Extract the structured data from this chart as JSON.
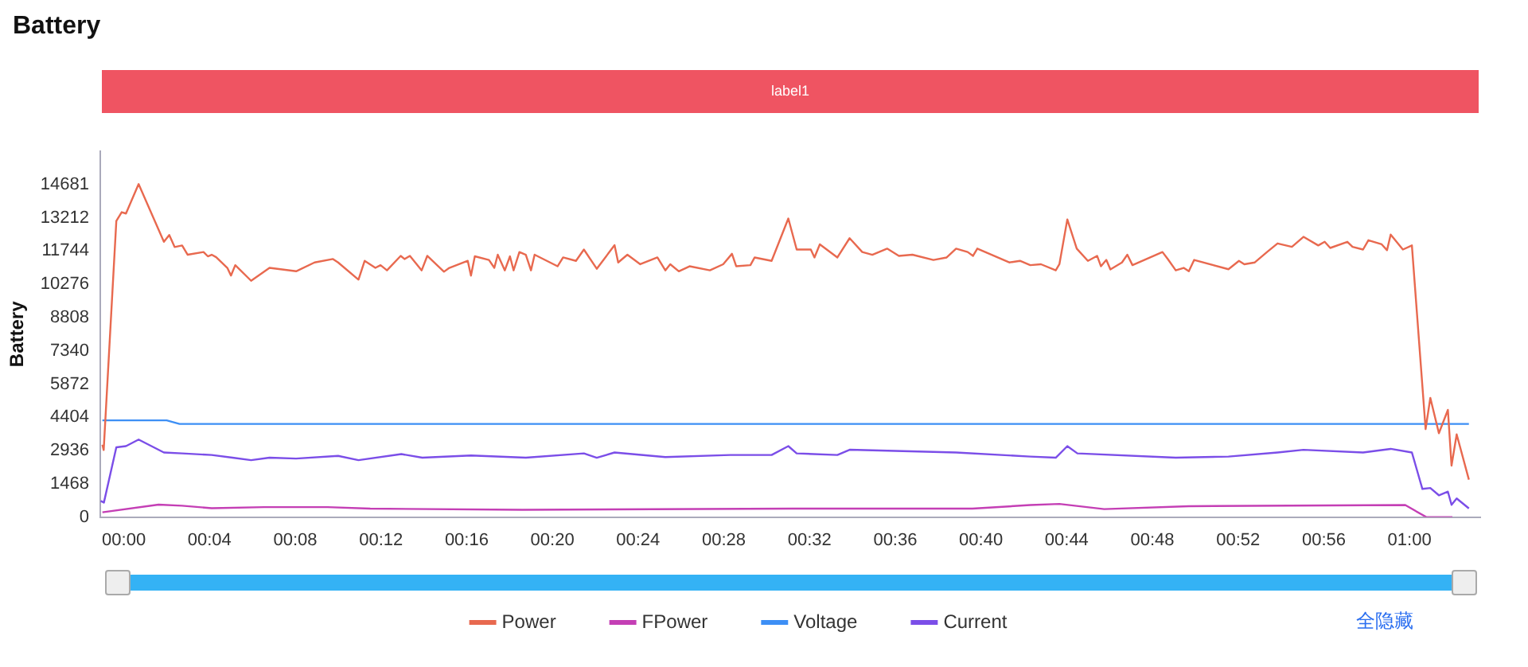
{
  "chart_data": {
    "type": "line",
    "title": "Battery",
    "ylabel": "Battery",
    "legend": "bottom",
    "grid": false,
    "marker": "none",
    "line_style": "solid",
    "annotations": [
      "label1",
      "全隐藏"
    ],
    "xlim": [
      -1.1,
      63.3
    ],
    "xticks": [
      {
        "value": 0,
        "label": "00:00"
      },
      {
        "value": 4,
        "label": "00:04"
      },
      {
        "value": 8,
        "label": "00:08"
      },
      {
        "value": 12,
        "label": "00:12"
      },
      {
        "value": 16,
        "label": "00:16"
      },
      {
        "value": 20,
        "label": "00:20"
      },
      {
        "value": 24,
        "label": "00:24"
      },
      {
        "value": 28,
        "label": "00:28"
      },
      {
        "value": 32,
        "label": "00:32"
      },
      {
        "value": 36,
        "label": "00:36"
      },
      {
        "value": 40,
        "label": "00:40"
      },
      {
        "value": 44,
        "label": "00:44"
      },
      {
        "value": 48,
        "label": "00:48"
      },
      {
        "value": 52,
        "label": "00:52"
      },
      {
        "value": 56,
        "label": "00:56"
      },
      {
        "value": 60,
        "label": "01:00"
      }
    ],
    "ylim": [
      0,
      16149
    ],
    "yticks": [
      0,
      1468,
      2936,
      4404,
      5872,
      7340,
      8808,
      10276,
      11744,
      13212,
      14681
    ],
    "series": [
      {
        "name": "Power",
        "color": "#e8694f",
        "x": [
          -1,
          -0.94,
          -0.35,
          -0.1,
          0.1,
          0.69,
          1.87,
          2.12,
          2.37,
          2.72,
          2.98,
          3.72,
          3.92,
          4.1,
          4.31,
          4.83,
          5,
          5.2,
          5.94,
          6.8,
          8.04,
          8.9,
          9.76,
          10,
          10.95,
          11.24,
          11.74,
          11.98,
          12.28,
          12.92,
          13.1,
          13.35,
          13.9,
          14.16,
          14.94,
          15.19,
          16.05,
          16.2,
          16.38,
          17.04,
          17.29,
          17.45,
          17.78,
          18.02,
          18.19,
          18.46,
          18.76,
          19,
          19.17,
          20.24,
          20.5,
          21.1,
          21.47,
          22.07,
          22.9,
          23.07,
          23.5,
          24.1,
          24.9,
          25.27,
          25.5,
          25.9,
          26.4,
          27.35,
          27.97,
          28.38,
          28.58,
          29.24,
          29.44,
          30.23,
          31.01,
          31.4,
          32.06,
          32.23,
          32.48,
          33.3,
          33.87,
          34.46,
          34.93,
          35.62,
          36.17,
          36.8,
          37.78,
          38.4,
          38.84,
          39.38,
          39.63,
          39.83,
          41.32,
          41.82,
          42.3,
          42.8,
          43.49,
          43.66,
          44.03,
          44.47,
          44.99,
          45.42,
          45.6,
          45.85,
          46.04,
          46.58,
          46.83,
          47.07,
          48.47,
          48.72,
          49.09,
          49.46,
          49.7,
          49.95,
          51.55,
          52.04,
          52.29,
          52.78,
          53.35,
          53.84,
          54.51,
          55.05,
          55.74,
          56.04,
          56.3,
          57.1,
          57.34,
          57.83,
          58.08,
          58.7,
          58.95,
          59.12,
          59.69,
          60.11,
          60.75,
          60.97,
          61.37,
          61.79,
          61.96,
          62.2,
          62.77
        ],
        "values": [
          3190,
          2960,
          13070,
          13460,
          13400,
          14700,
          12150,
          12450,
          11920,
          11990,
          11580,
          11700,
          11510,
          11580,
          11470,
          11000,
          10660,
          11120,
          10430,
          11000,
          10850,
          11240,
          11390,
          11240,
          10480,
          11310,
          11000,
          11120,
          10890,
          11530,
          11390,
          11530,
          10890,
          11530,
          10830,
          11000,
          11310,
          10660,
          11510,
          11350,
          11000,
          11580,
          10890,
          11510,
          10890,
          11700,
          11580,
          10890,
          11580,
          11070,
          11460,
          11310,
          11810,
          10960,
          12000,
          11240,
          11580,
          11160,
          11460,
          10890,
          11160,
          10850,
          11070,
          10890,
          11160,
          11620,
          11070,
          11120,
          11460,
          11310,
          13180,
          11810,
          11810,
          11460,
          12040,
          11460,
          12310,
          11700,
          11580,
          11850,
          11530,
          11580,
          11350,
          11460,
          11850,
          11700,
          11530,
          11850,
          11240,
          11310,
          11120,
          11160,
          10890,
          11160,
          13140,
          11850,
          11310,
          11530,
          11070,
          11350,
          10930,
          11240,
          11580,
          11120,
          11700,
          11390,
          10890,
          11000,
          10850,
          11350,
          10940,
          11310,
          11160,
          11240,
          11700,
          12080,
          11930,
          12370,
          11990,
          12150,
          11880,
          12150,
          11930,
          11810,
          12220,
          12040,
          11780,
          12470,
          11810,
          11990,
          3880,
          5260,
          3700,
          4730,
          2270,
          3650,
          1650
        ]
      },
      {
        "name": "FPower",
        "color": "#c43fb5",
        "x": [
          -1,
          1.62,
          2.72,
          4.1,
          6.56,
          9.5,
          11.5,
          18.6,
          31.2,
          39.6,
          42.3,
          43.66,
          45.75,
          49.7,
          59.8,
          60.78,
          62
        ],
        "values": [
          210,
          550,
          500,
          390,
          440,
          440,
          370,
          320,
          370,
          370,
          530,
          580,
          350,
          480,
          530,
          0,
          0
        ]
      },
      {
        "name": "Voltage",
        "color": "#3d8ff5",
        "x": [
          -1,
          2,
          2.6,
          62.77
        ],
        "values": [
          4270,
          4270,
          4110,
          4110
        ]
      },
      {
        "name": "Current",
        "color": "#7b4ee8",
        "x": [
          -1.08,
          -0.93,
          -0.35,
          0.1,
          0.69,
          1.87,
          2.72,
          4.1,
          5.07,
          5.94,
          6.8,
          8.04,
          10,
          10.95,
          12.95,
          13.93,
          16.2,
          18.76,
          21.47,
          22.07,
          22.9,
          25.27,
          28.3,
          30.23,
          31.01,
          31.4,
          33.3,
          33.87,
          38.84,
          42.3,
          43.49,
          44.03,
          44.5,
          49.09,
          51.55,
          53.84,
          55.05,
          57.83,
          59.12,
          60.11,
          60.6,
          60.97,
          61.37,
          61.79,
          61.96,
          62.2,
          62.77
        ],
        "values": [
          710,
          640,
          3080,
          3130,
          3420,
          2850,
          2810,
          2740,
          2620,
          2510,
          2620,
          2580,
          2700,
          2510,
          2780,
          2620,
          2720,
          2620,
          2810,
          2620,
          2850,
          2650,
          2740,
          2740,
          3130,
          2810,
          2740,
          2970,
          2850,
          2670,
          2620,
          3130,
          2810,
          2620,
          2670,
          2850,
          2970,
          2850,
          3010,
          2850,
          1240,
          1280,
          960,
          1120,
          540,
          820,
          380
        ]
      }
    ]
  }
}
